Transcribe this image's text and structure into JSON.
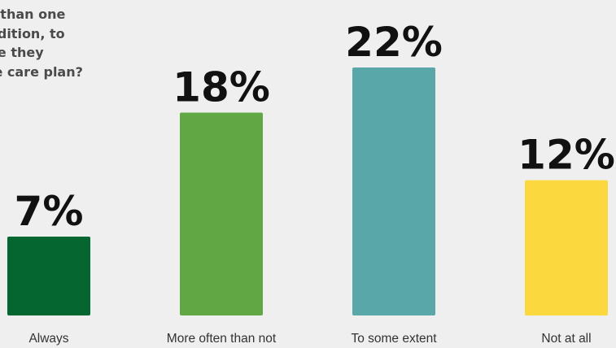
{
  "question": {
    "text": "ore than one\n condition, to\nt are they\name care plan?"
  },
  "chart_data": {
    "type": "bar",
    "title": "",
    "xlabel": "",
    "ylabel": "",
    "ylim": [
      0,
      22
    ],
    "grid": false,
    "legend": "none",
    "categories": [
      "Always",
      "More often than not",
      "To some extent",
      "Not at all"
    ],
    "values": [
      7,
      18,
      22,
      12
    ],
    "value_labels": [
      "7%",
      "18%",
      "22%",
      "12%"
    ],
    "colors": [
      "#05672f",
      "#61a744",
      "#59a7a9",
      "#fbd93e"
    ]
  }
}
